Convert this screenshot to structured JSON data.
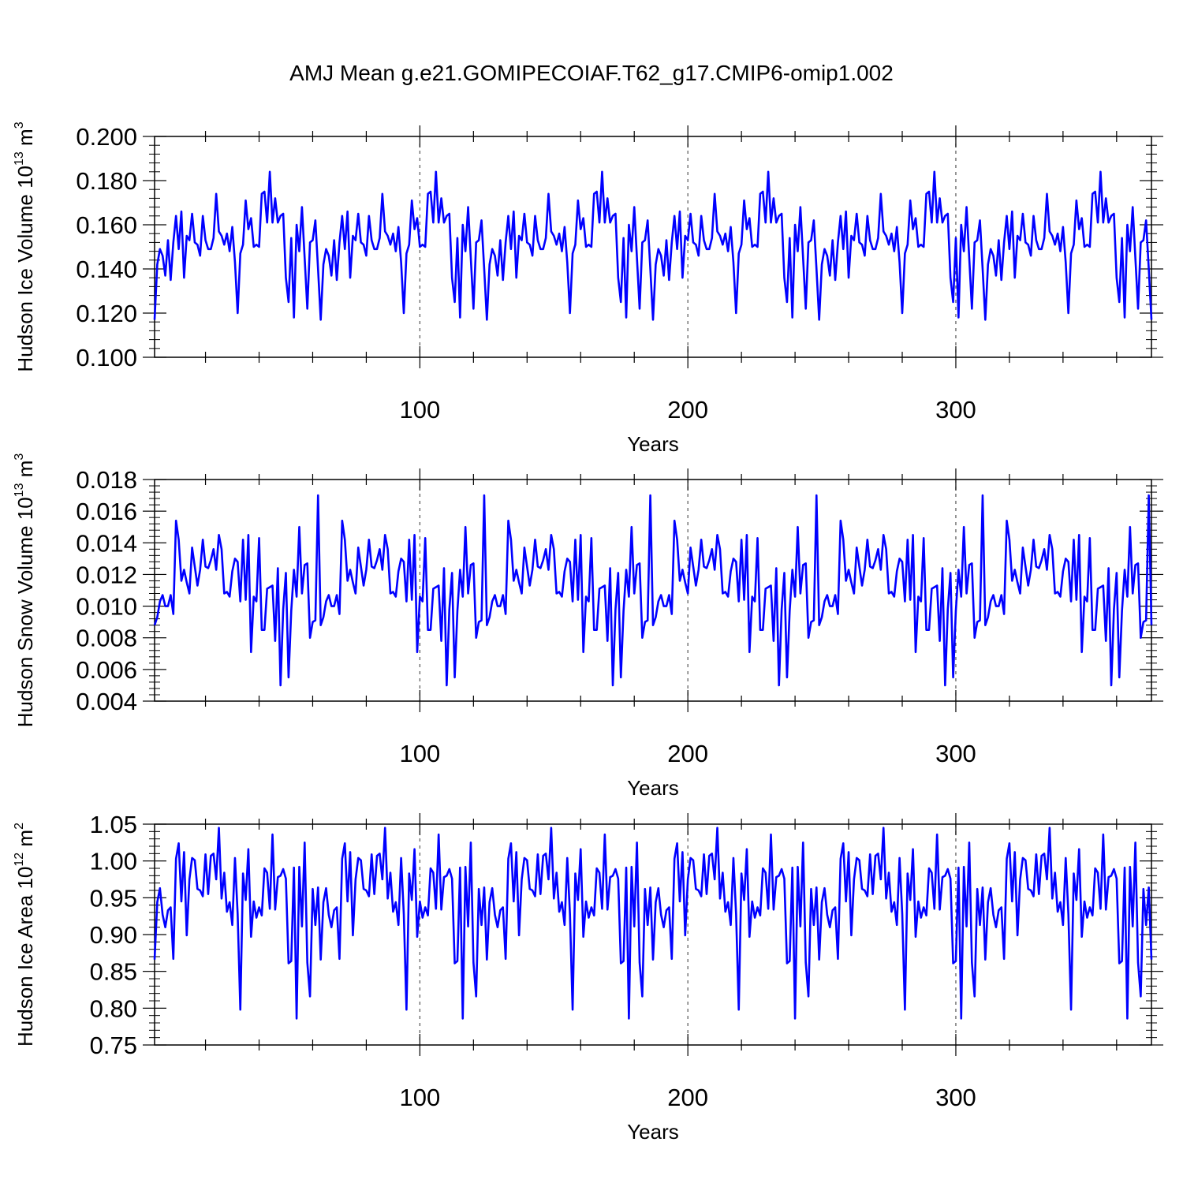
{
  "figure_title": "AMJ Mean g.e21.GOMIPECOIAF.T62_g17.CMIP6-omip1.002",
  "colors": {
    "series": "#0000ff",
    "axis": "#000000",
    "refline": "#555555",
    "background": "#ffffff"
  },
  "chart_data": [
    {
      "type": "line",
      "title": "AMJ Mean g.e21.GOMIPECOIAF.T62_g17.CMIP6-omip1.002",
      "ylabel_main": "Hudson Ice Volume 10",
      "ylabel_exp": "13",
      "ylabel_unit": "m",
      "ylabel_unit_exp": "3",
      "xlabel": "Years",
      "xlim": [
        1,
        373
      ],
      "ylim": [
        0.1,
        0.2
      ],
      "xticks": [
        100,
        200,
        300
      ],
      "xtick_labels": [
        "100",
        "200",
        "300"
      ],
      "yticks": [
        0.1,
        0.12,
        0.14,
        0.16,
        0.18,
        0.2
      ],
      "ytick_labels": [
        "0.100",
        "0.120",
        "0.140",
        "0.160",
        "0.180",
        "0.200"
      ],
      "reference_lines_x": [
        100,
        200,
        300
      ],
      "cycle_length": 62,
      "cycle_values": [
        0.117,
        0.142,
        0.149,
        0.146,
        0.137,
        0.153,
        0.135,
        0.152,
        0.164,
        0.149,
        0.166,
        0.136,
        0.155,
        0.153,
        0.165,
        0.152,
        0.151,
        0.146,
        0.164,
        0.153,
        0.149,
        0.149,
        0.154,
        0.174,
        0.157,
        0.155,
        0.151,
        0.156,
        0.148,
        0.159,
        0.143,
        0.12,
        0.147,
        0.151,
        0.171,
        0.158,
        0.163,
        0.15,
        0.151,
        0.15,
        0.174,
        0.175,
        0.161,
        0.184,
        0.161,
        0.172,
        0.161,
        0.164,
        0.165,
        0.136,
        0.125,
        0.154,
        0.118,
        0.16,
        0.148,
        0.168,
        0.145,
        0.122,
        0.152,
        0.153,
        0.162,
        0.14
      ],
      "n_years": 373
    },
    {
      "type": "line",
      "ylabel_main": "Hudson Snow Volume 10",
      "ylabel_exp": "13",
      "ylabel_unit": "m",
      "ylabel_unit_exp": "3",
      "xlabel": "Years",
      "xlim": [
        1,
        373
      ],
      "ylim": [
        0.004,
        0.018
      ],
      "xticks": [
        100,
        200,
        300
      ],
      "xtick_labels": [
        "100",
        "200",
        "300"
      ],
      "yticks": [
        0.004,
        0.006,
        0.008,
        0.01,
        0.012,
        0.014,
        0.016,
        0.018
      ],
      "ytick_labels": [
        "0.004",
        "0.006",
        "0.008",
        "0.010",
        "0.012",
        "0.014",
        "0.016",
        "0.018"
      ],
      "reference_lines_x": [
        100,
        200,
        300
      ],
      "cycle_length": 62,
      "cycle_values": [
        0.0088,
        0.0093,
        0.0103,
        0.0107,
        0.01,
        0.01,
        0.0107,
        0.0095,
        0.0154,
        0.0142,
        0.0116,
        0.0123,
        0.0115,
        0.0108,
        0.0137,
        0.0125,
        0.0113,
        0.0123,
        0.0142,
        0.0125,
        0.0124,
        0.0129,
        0.0136,
        0.0123,
        0.0145,
        0.0136,
        0.0108,
        0.0109,
        0.0106,
        0.0122,
        0.013,
        0.0128,
        0.0103,
        0.0142,
        0.0104,
        0.0145,
        0.0071,
        0.0106,
        0.0103,
        0.0143,
        0.0085,
        0.0085,
        0.0111,
        0.0112,
        0.0113,
        0.0078,
        0.0124,
        0.005,
        0.0098,
        0.0121,
        0.0055,
        0.0097,
        0.0123,
        0.0106,
        0.015,
        0.0108,
        0.0126,
        0.0127,
        0.008,
        0.009,
        0.0091,
        0.017
      ],
      "n_years": 373
    },
    {
      "type": "line",
      "ylabel_main": "Hudson Ice Area 10",
      "ylabel_exp": "12",
      "ylabel_unit": "m",
      "ylabel_unit_exp": "2",
      "xlabel": "Years",
      "xlim": [
        1,
        373
      ],
      "ylim": [
        0.75,
        1.05
      ],
      "xticks": [
        100,
        200,
        300
      ],
      "xtick_labels": [
        "100",
        "200",
        "300"
      ],
      "yticks": [
        0.75,
        0.8,
        0.85,
        0.9,
        0.95,
        1.0,
        1.05
      ],
      "ytick_labels": [
        "0.75",
        "0.80",
        "0.85",
        "0.90",
        "0.95",
        "1.00",
        "1.05"
      ],
      "reference_lines_x": [
        100,
        200,
        300
      ],
      "cycle_length": 62,
      "cycle_values": [
        0.866,
        0.944,
        0.963,
        0.927,
        0.91,
        0.933,
        0.937,
        0.867,
        1.003,
        1.024,
        0.945,
        1.012,
        0.899,
        0.975,
        1.004,
        1.001,
        0.962,
        0.96,
        0.952,
        1.009,
        0.955,
        1.007,
        1.01,
        0.975,
        1.045,
        0.949,
        0.984,
        0.931,
        0.944,
        0.913,
        1.004,
        0.928,
        0.798,
        0.983,
        0.947,
        1.016,
        0.897,
        0.945,
        0.923,
        0.937,
        0.926,
        0.99,
        0.984,
        0.935,
        1.036,
        0.934,
        0.978,
        0.98,
        0.989,
        0.976,
        0.861,
        0.864,
        0.991,
        0.786,
        0.992,
        0.911,
        1.025,
        0.862,
        0.816,
        0.962,
        0.913,
        0.964
      ]
    }
  ]
}
